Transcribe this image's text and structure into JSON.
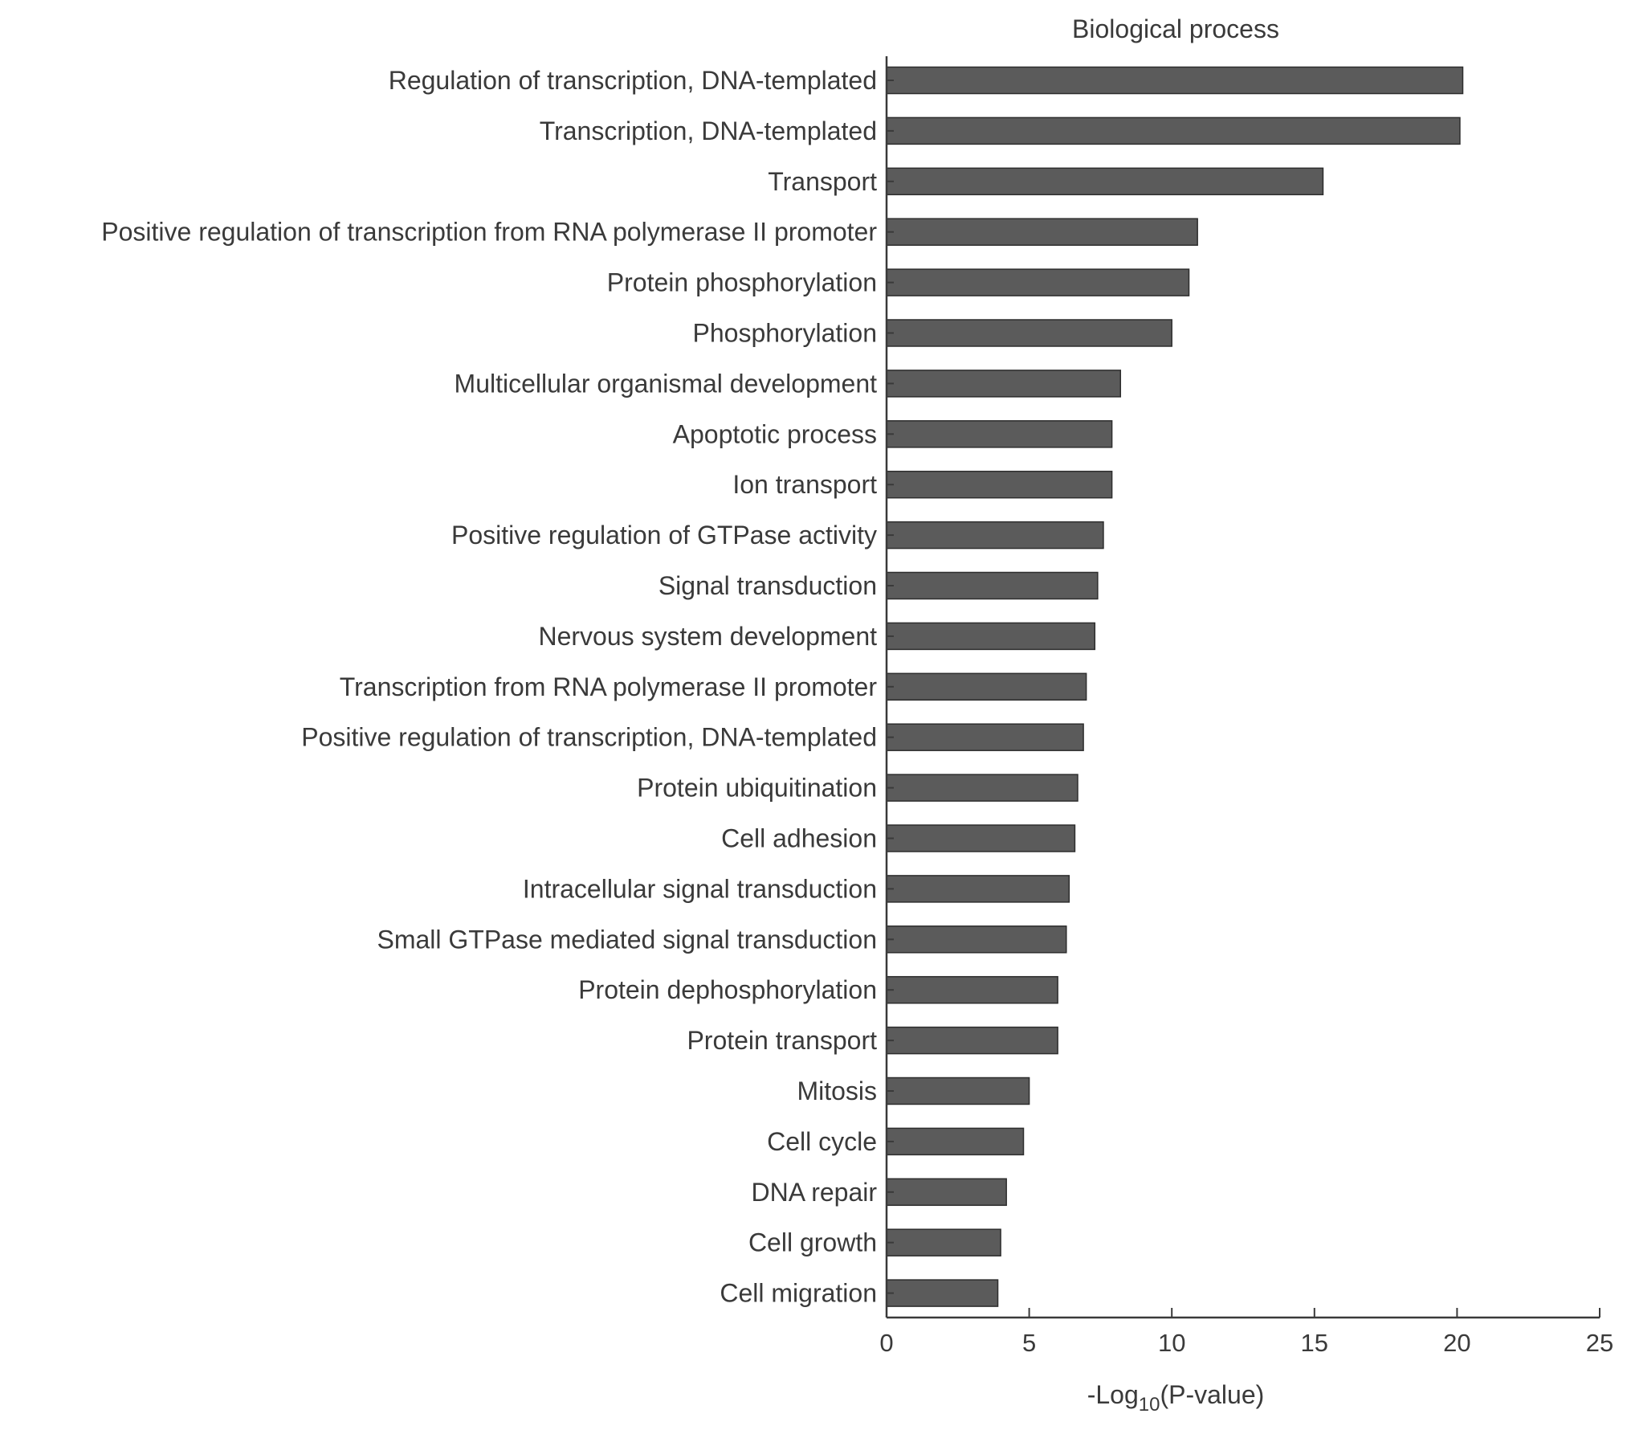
{
  "colors": {
    "bar_fill": "#5b5b5b",
    "bar_stroke": "#2e2e2e",
    "text": "#3a3a3a",
    "axis": "#3a3a3a",
    "background": "#ffffff"
  },
  "chart_data": {
    "type": "bar",
    "orientation": "horizontal",
    "title": "Biological process",
    "xlabel": {
      "prefix": "-Log",
      "subscript": "10",
      "suffix": "(P-value)"
    },
    "ylabel": "",
    "xlim": [
      0,
      25
    ],
    "xticks": [
      0,
      5,
      10,
      15,
      20,
      25
    ],
    "grid": false,
    "legend": "none",
    "categories": [
      "Regulation of transcription, DNA-templated",
      "Transcription, DNA-templated",
      "Transport",
      "Positive regulation of transcription from RNA polymerase II promoter",
      "Protein phosphorylation",
      "Phosphorylation",
      "Multicellular organismal development",
      "Apoptotic process",
      "Ion transport",
      "Positive regulation of GTPase activity",
      "Signal transduction",
      "Nervous system development",
      "Transcription from RNA polymerase II promoter",
      "Positive regulation of transcription, DNA-templated",
      "Protein ubiquitination",
      "Cell adhesion",
      "Intracellular signal transduction",
      "Small GTPase mediated signal transduction",
      "Protein dephosphorylation",
      "Protein transport",
      "Mitosis",
      "Cell cycle",
      "DNA repair",
      "Cell growth",
      "Cell migration"
    ],
    "values": [
      20.2,
      20.1,
      15.3,
      10.9,
      10.6,
      10.0,
      8.2,
      7.9,
      7.9,
      7.6,
      7.4,
      7.3,
      7.0,
      6.9,
      6.7,
      6.6,
      6.4,
      6.3,
      6.0,
      6.0,
      5.0,
      4.8,
      4.2,
      4.0,
      3.9
    ]
  }
}
